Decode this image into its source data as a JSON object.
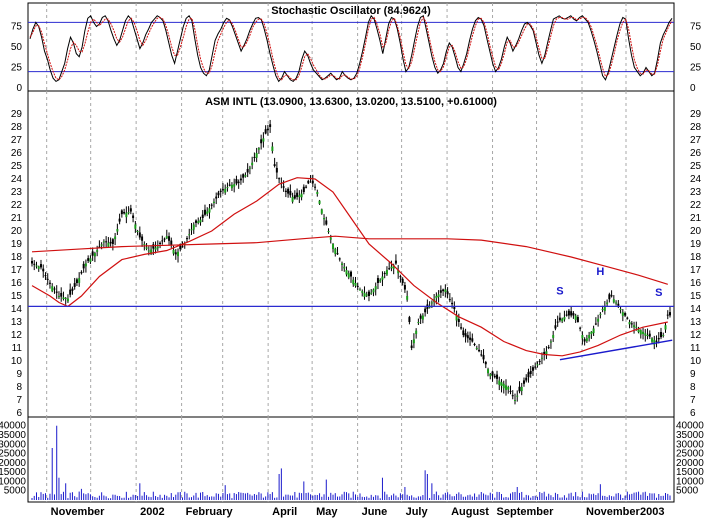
{
  "chart_data": [
    {
      "type": "line",
      "panel": "stochastic",
      "title": "Stochastic Oscillator (84.9624)",
      "ylim": [
        0,
        100
      ],
      "yticks": [
        0,
        25,
        50,
        75
      ],
      "reference_lines": [
        20,
        80
      ],
      "series": [
        {
          "values": [
            60,
            72,
            80,
            75,
            62,
            45,
            35,
            22,
            12,
            8,
            10,
            20,
            30,
            48,
            62,
            55,
            42,
            38,
            50,
            70,
            85,
            88,
            80,
            75,
            78,
            86,
            88,
            82,
            70,
            60,
            52,
            58,
            70,
            82,
            88,
            84,
            72,
            60,
            48,
            55,
            65,
            72,
            80,
            84,
            88,
            86,
            82,
            70,
            55,
            40,
            30,
            45,
            60,
            75,
            85,
            88,
            82,
            60,
            40,
            25,
            18,
            15,
            22,
            40,
            58,
            66,
            72,
            80,
            85,
            83,
            75,
            65,
            55,
            45,
            52,
            60,
            70,
            78,
            85,
            86,
            83,
            72,
            58,
            42,
            28,
            15,
            8,
            12,
            20,
            15,
            10,
            8,
            12,
            20,
            35,
            45,
            40,
            30,
            22,
            18,
            14,
            10,
            12,
            15,
            18,
            14,
            10,
            12,
            20,
            15,
            12,
            10,
            12,
            18,
            30,
            45,
            62,
            80,
            88,
            84,
            72,
            58,
            42,
            60,
            78,
            86,
            84,
            72,
            55,
            35,
            20,
            25,
            40,
            58,
            75,
            86,
            88,
            72,
            55,
            38,
            25,
            18,
            22,
            30,
            45,
            55,
            50,
            38,
            25,
            20,
            30,
            42,
            58,
            72,
            82,
            86,
            84,
            76,
            60,
            45,
            30,
            20,
            25,
            35,
            50,
            62,
            55,
            45,
            52,
            60,
            70,
            78,
            80,
            76,
            70,
            55,
            40,
            30,
            40,
            55,
            70,
            84,
            86,
            88,
            85,
            84,
            86,
            88,
            84,
            82,
            86,
            88,
            84,
            80,
            70,
            58,
            45,
            30,
            15,
            10,
            20,
            35,
            50,
            65,
            78,
            86,
            84,
            60,
            40,
            25,
            20,
            15,
            18,
            25,
            20,
            15,
            18,
            35,
            55,
            65,
            72,
            80,
            85
          ]
        },
        {
          "values": [
            62,
            68,
            76,
            76,
            68,
            54,
            42,
            30,
            20,
            12,
            10,
            14,
            22,
            34,
            48,
            56,
            52,
            45,
            44,
            54,
            68,
            80,
            84,
            80,
            76,
            80,
            84,
            84,
            78,
            70,
            60,
            56,
            62,
            72,
            82,
            85,
            80,
            70,
            58,
            52,
            58,
            66,
            74,
            80,
            85,
            86,
            84,
            76,
            64,
            50,
            40,
            40,
            50,
            62,
            75,
            84,
            85,
            72,
            52,
            35,
            24,
            18,
            18,
            28,
            44,
            58,
            66,
            74,
            80,
            83,
            78,
            70,
            60,
            50,
            50,
            56,
            64,
            74,
            80,
            84,
            84,
            78,
            66,
            52,
            36,
            22,
            12,
            10,
            15,
            16,
            12,
            10,
            10,
            15,
            26,
            38,
            42,
            36,
            28,
            22,
            16,
            12,
            11,
            13,
            16,
            15,
            12,
            11,
            15,
            16,
            13,
            11,
            11,
            14,
            24,
            38,
            54,
            72,
            84,
            86,
            78,
            66,
            50,
            54,
            70,
            82,
            85,
            76,
            62,
            44,
            28,
            24,
            32,
            48,
            65,
            80,
            86,
            80,
            62,
            46,
            32,
            22,
            20,
            26,
            38,
            50,
            52,
            44,
            32,
            24,
            26,
            36,
            50,
            64,
            76,
            84,
            85,
            80,
            68,
            52,
            38,
            26,
            22,
            30,
            42,
            56,
            58,
            50,
            50,
            56,
            64,
            72,
            78,
            78,
            72,
            62,
            48,
            36,
            36,
            48,
            62,
            76,
            84,
            86,
            86,
            84,
            84,
            86,
            86,
            83,
            84,
            86,
            86,
            82,
            75,
            64,
            52,
            38,
            24,
            14,
            16,
            28,
            42,
            58,
            70,
            80,
            84,
            72,
            52,
            34,
            24,
            18,
            17,
            22,
            21,
            17,
            17,
            28,
            45,
            60,
            68,
            76,
            82
          ]
        }
      ]
    },
    {
      "type": "candlestick",
      "panel": "price",
      "title": "ASM INTL (13.0900, 13.6300, 13.0200, 13.5100, +0.61000)",
      "ylim": [
        6,
        29
      ],
      "yticks": [
        6,
        7,
        8,
        9,
        10,
        11,
        12,
        13,
        14,
        15,
        16,
        17,
        18,
        19,
        20,
        21,
        22,
        23,
        24,
        25,
        26,
        27,
        28,
        29
      ],
      "x_start_date": "2001-10-22",
      "x_end_date": "2002-12-31",
      "close_curve": [
        [
          0,
          17.5
        ],
        [
          4,
          17.2
        ],
        [
          8,
          16
        ],
        [
          12,
          15
        ],
        [
          16,
          14.8
        ],
        [
          20,
          16
        ],
        [
          24,
          17.5
        ],
        [
          28,
          18.3
        ],
        [
          32,
          19.2
        ],
        [
          36,
          19
        ],
        [
          40,
          21.3
        ],
        [
          44,
          21.5
        ],
        [
          48,
          19.5
        ],
        [
          52,
          18.5
        ],
        [
          56,
          18.8
        ],
        [
          60,
          19.6
        ],
        [
          64,
          18.2
        ],
        [
          68,
          19
        ],
        [
          72,
          20.5
        ],
        [
          76,
          21
        ],
        [
          80,
          22
        ],
        [
          84,
          23
        ],
        [
          88,
          23.5
        ],
        [
          92,
          23.7
        ],
        [
          96,
          24.5
        ],
        [
          100,
          26
        ],
        [
          104,
          27.5
        ],
        [
          106,
          28
        ],
        [
          108,
          25
        ],
        [
          110,
          24
        ],
        [
          113,
          23
        ],
        [
          117,
          22.5
        ],
        [
          121,
          23
        ],
        [
          124,
          24
        ],
        [
          127,
          23
        ],
        [
          130,
          21
        ],
        [
          134,
          19
        ],
        [
          138,
          17.5
        ],
        [
          142,
          16.5
        ],
        [
          146,
          15.5
        ],
        [
          150,
          15
        ],
        [
          154,
          16
        ],
        [
          158,
          17
        ],
        [
          162,
          17.5
        ],
        [
          165,
          16
        ],
        [
          167,
          15
        ],
        [
          169,
          11
        ],
        [
          172,
          13
        ],
        [
          176,
          14
        ],
        [
          180,
          15
        ],
        [
          184,
          15.5
        ],
        [
          188,
          14
        ],
        [
          192,
          12
        ],
        [
          196,
          11.5
        ],
        [
          200,
          10.5
        ],
        [
          204,
          9
        ],
        [
          208,
          8.5
        ],
        [
          212,
          8
        ],
        [
          215,
          7
        ],
        [
          218,
          8
        ],
        [
          222,
          9
        ],
        [
          226,
          10
        ],
        [
          230,
          11
        ],
        [
          234,
          13
        ],
        [
          238,
          13.5
        ],
        [
          242,
          13.5
        ],
        [
          246,
          11.5
        ],
        [
          250,
          12.5
        ],
        [
          254,
          14
        ],
        [
          258,
          15
        ],
        [
          262,
          14
        ],
        [
          266,
          13
        ],
        [
          270,
          12.5
        ],
        [
          274,
          12
        ],
        [
          278,
          11.5
        ],
        [
          281,
          12
        ],
        [
          283,
          13.51
        ]
      ],
      "moving_averages": [
        {
          "values": [
            [
              0,
              15.8
            ],
            [
              8,
              15
            ],
            [
              12,
              14.5
            ],
            [
              16,
              14.2
            ],
            [
              22,
              15
            ],
            [
              30,
              16.5
            ],
            [
              40,
              17.8
            ],
            [
              50,
              18.2
            ],
            [
              60,
              18.5
            ],
            [
              70,
              19.2
            ],
            [
              80,
              20
            ],
            [
              90,
              21.3
            ],
            [
              100,
              22.3
            ],
            [
              110,
              23.6
            ],
            [
              118,
              24.1
            ],
            [
              126,
              24
            ],
            [
              134,
              23
            ],
            [
              142,
              21
            ],
            [
              150,
              19
            ],
            [
              160,
              17.5
            ],
            [
              170,
              15.8
            ],
            [
              180,
              14.5
            ],
            [
              190,
              13.4
            ],
            [
              200,
              12.6
            ],
            [
              210,
              11.5
            ],
            [
              220,
              10.8
            ],
            [
              228,
              10.5
            ],
            [
              236,
              10.4
            ],
            [
              244,
              10.7
            ],
            [
              252,
              11.2
            ],
            [
              262,
              12
            ],
            [
              272,
              12.6
            ],
            [
              283,
              13
            ]
          ]
        },
        {
          "values": [
            [
              0,
              18.4
            ],
            [
              20,
              18.6
            ],
            [
              40,
              18.8
            ],
            [
              60,
              18.9
            ],
            [
              80,
              19
            ],
            [
              100,
              19.1
            ],
            [
              120,
              19.4
            ],
            [
              135,
              19.6
            ],
            [
              150,
              19.4
            ],
            [
              170,
              19.4
            ],
            [
              185,
              19.4
            ],
            [
              200,
              19.3
            ],
            [
              220,
              18.8
            ],
            [
              240,
              18
            ],
            [
              255,
              17.3
            ],
            [
              270,
              16.6
            ],
            [
              283,
              15.9
            ]
          ]
        }
      ],
      "horizontal_lines": [
        14.2
      ],
      "trend_line": [
        [
          235,
          10.1
        ],
        [
          285,
          11.6
        ]
      ],
      "annotations": [
        {
          "text": "S",
          "x": 235,
          "y": 15.1
        },
        {
          "text": "H",
          "x": 253,
          "y": 16.6
        },
        {
          "text": "S",
          "x": 279,
          "y": 15.0
        }
      ],
      "months": [
        "November",
        "2002",
        "February",
        "April",
        "May",
        "June",
        "July",
        "August",
        "September",
        "November",
        "2003"
      ]
    },
    {
      "type": "bar",
      "panel": "volume",
      "ylim": [
        0,
        42000
      ],
      "yticks": [
        5000,
        10000,
        15000,
        20000,
        25000,
        30000,
        35000,
        40000
      ],
      "spikes": [
        [
          9,
          28000
        ],
        [
          11,
          40000
        ],
        [
          12,
          12000
        ],
        [
          15,
          9000
        ],
        [
          22,
          6000
        ],
        [
          48,
          9000
        ],
        [
          86,
          8000
        ],
        [
          110,
          14000
        ],
        [
          111,
          17000
        ],
        [
          121,
          10000
        ],
        [
          131,
          11000
        ],
        [
          156,
          12000
        ],
        [
          166,
          7000
        ],
        [
          175,
          16000
        ],
        [
          176,
          14000
        ],
        [
          178,
          9000
        ],
        [
          216,
          7000
        ],
        [
          253,
          8500
        ],
        [
          270,
          4500
        ]
      ],
      "base_volume": 2600
    }
  ]
}
